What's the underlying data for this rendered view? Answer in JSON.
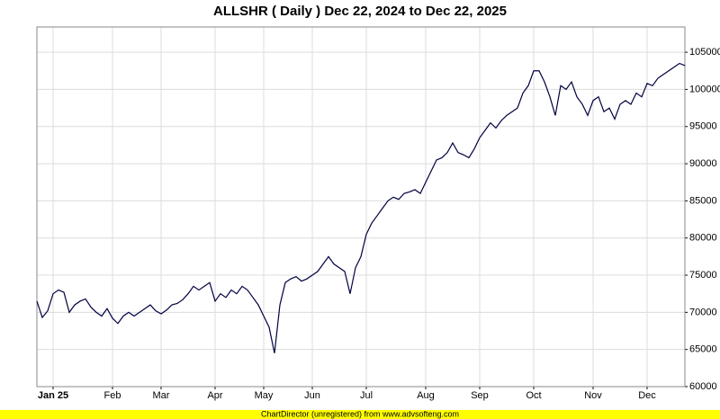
{
  "chart_data": {
    "type": "line",
    "title": "ALLSHR ( Daily ) Dec 22, 2024 to Dec 22, 2025",
    "footer": "ChartDirector (unregistered) from www.advsofteng.com",
    "color": "#000040",
    "grid": true,
    "ylim": [
      60000,
      108400
    ],
    "yticks": [
      60000,
      65000,
      70000,
      75000,
      80000,
      85000,
      90000,
      95000,
      100000,
      105000
    ],
    "categories": [
      null,
      null,
      null,
      "Jan 25",
      null,
      null,
      null,
      null,
      null,
      null,
      null,
      null,
      null,
      null,
      "Feb",
      null,
      null,
      null,
      null,
      null,
      null,
      null,
      null,
      "Mar",
      null,
      null,
      null,
      null,
      null,
      null,
      null,
      null,
      null,
      "Apr",
      null,
      null,
      null,
      null,
      null,
      null,
      null,
      null,
      "May",
      null,
      null,
      null,
      null,
      null,
      null,
      null,
      null,
      "Jun",
      null,
      null,
      null,
      null,
      null,
      null,
      null,
      null,
      null,
      "Jul",
      null,
      null,
      null,
      null,
      null,
      null,
      null,
      null,
      null,
      null,
      "Aug",
      null,
      null,
      null,
      null,
      null,
      null,
      null,
      null,
      null,
      "Sep",
      null,
      null,
      null,
      null,
      null,
      null,
      null,
      null,
      null,
      "Oct",
      null,
      null,
      null,
      null,
      null,
      null,
      null,
      null,
      null,
      null,
      "Nov",
      null,
      null,
      null,
      null,
      null,
      null,
      null,
      null,
      null,
      "Dec",
      null,
      null,
      null,
      null,
      null,
      null,
      null
    ],
    "values": [
      71500,
      69300,
      70200,
      72500,
      73000,
      72700,
      70000,
      71000,
      71500,
      71800,
      70700,
      70000,
      69500,
      70500,
      69200,
      68500,
      69500,
      70000,
      69500,
      70000,
      70500,
      71000,
      70200,
      69800,
      70300,
      71000,
      71200,
      71700,
      72500,
      73500,
      73000,
      73500,
      74000,
      71500,
      72500,
      72000,
      73000,
      72500,
      73500,
      73000,
      72000,
      71000,
      69500,
      68000,
      64500,
      71000,
      74000,
      74500,
      74800,
      74200,
      74500,
      75000,
      75500,
      76500,
      77500,
      76500,
      76000,
      75500,
      72500,
      76000,
      77500,
      80500,
      82000,
      83000,
      84000,
      85000,
      85500,
      85200,
      86000,
      86200,
      86500,
      86000,
      87500,
      89000,
      90500,
      90800,
      91500,
      92800,
      91500,
      91200,
      90800,
      92000,
      93500,
      94500,
      95500,
      94800,
      95800,
      96500,
      97000,
      97500,
      99500,
      100500,
      102500,
      102500,
      101000,
      99000,
      96500,
      100500,
      100000,
      101000,
      99000,
      98000,
      96500,
      98500,
      99000,
      97000,
      97500,
      96000,
      98000,
      98500,
      98000,
      99500,
      99000,
      100800,
      100500,
      101500,
      102000,
      102500,
      103000,
      103500,
      103200
    ]
  }
}
